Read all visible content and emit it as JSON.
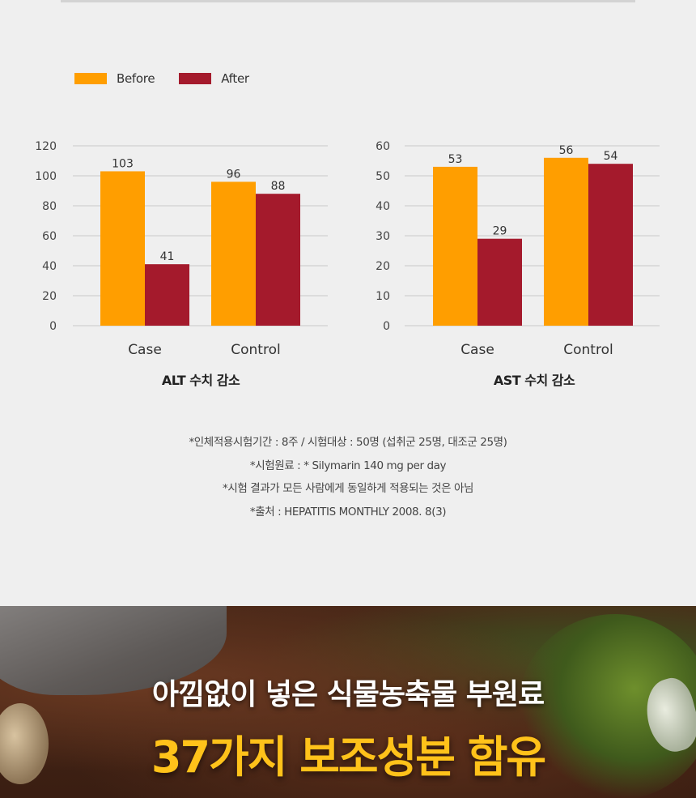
{
  "legend": {
    "before_label": "Before",
    "after_label": "After",
    "before_color": "#FF9E00",
    "after_color": "#A41A2C"
  },
  "chart_data": [
    {
      "type": "bar",
      "title": "ALT 수치 감소",
      "categories": [
        "Case",
        "Control"
      ],
      "series": [
        {
          "name": "Before",
          "values": [
            103,
            96
          ]
        },
        {
          "name": "After",
          "values": [
            41,
            88
          ]
        }
      ],
      "ylim": [
        0,
        120
      ],
      "yticks": [
        0,
        20,
        40,
        60,
        80,
        100,
        120
      ],
      "grid": true,
      "legend_position": "top-left"
    },
    {
      "type": "bar",
      "title": "AST 수치 감소",
      "categories": [
        "Case",
        "Control"
      ],
      "series": [
        {
          "name": "Before",
          "values": [
            53,
            56
          ]
        },
        {
          "name": "After",
          "values": [
            29,
            54
          ]
        }
      ],
      "ylim": [
        0,
        60
      ],
      "yticks": [
        0,
        10,
        20,
        30,
        40,
        50,
        60
      ],
      "grid": true,
      "legend_position": "top-left"
    }
  ],
  "footnotes": [
    "*인체적용시험기간 : 8주 / 시험대상 : 50명 (섭취군 25명, 대조군 25명)",
    "*시험원료 : * Silymarin 140 mg per day",
    "*시험 결과가 모든 사람에게 동일하게 적용되는 것은 아님",
    "*출처 : HEPATITIS MONTHLY 2008. 8(3)"
  ],
  "banner": {
    "line1": "아낌없이 넣은 식물농축물 부원료",
    "line2": "37가지 보조성분 함유",
    "line2_color": "#FFC21A"
  }
}
